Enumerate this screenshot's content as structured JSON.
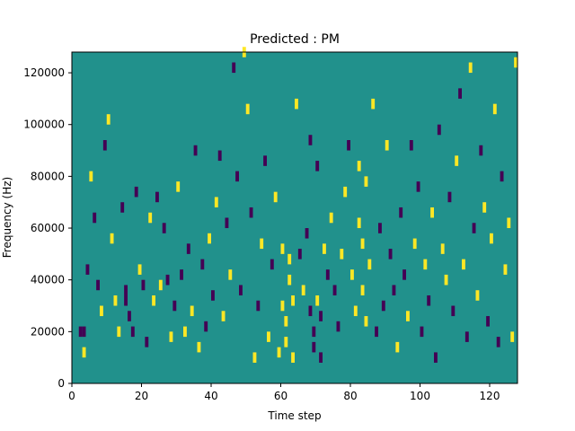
{
  "chart_data": {
    "type": "heatmap",
    "title": "Predicted : PM",
    "xlabel": "Time step",
    "ylabel": "Frequency (Hz)",
    "xlim": [
      0,
      128
    ],
    "ylim": [
      0,
      128000
    ],
    "x_ticks": [
      0,
      20,
      40,
      60,
      80,
      100,
      120
    ],
    "x_tick_labels": [
      "0",
      "20",
      "40",
      "60",
      "80",
      "100",
      "120"
    ],
    "y_ticks": [
      0,
      20000,
      40000,
      60000,
      80000,
      100000,
      120000
    ],
    "y_tick_labels": [
      "0",
      "20000",
      "40000",
      "60000",
      "80000",
      "100000",
      "120000"
    ],
    "grid": false,
    "colors": {
      "background": "#21918c",
      "high": "#fde725",
      "low": "#440154"
    },
    "cells": [
      {
        "x": 2,
        "f": 18000,
        "v": -1
      },
      {
        "x": 3,
        "f": 18000,
        "v": -1
      },
      {
        "x": 3,
        "f": 10000,
        "v": 1
      },
      {
        "x": 4,
        "f": 42000,
        "v": -1
      },
      {
        "x": 5,
        "f": 78000,
        "v": 1
      },
      {
        "x": 6,
        "f": 62000,
        "v": -1
      },
      {
        "x": 7,
        "f": 36000,
        "v": -1
      },
      {
        "x": 8,
        "f": 26000,
        "v": 1
      },
      {
        "x": 9,
        "f": 90000,
        "v": -1
      },
      {
        "x": 10,
        "f": 100000,
        "v": 1
      },
      {
        "x": 11,
        "f": 54000,
        "v": 1
      },
      {
        "x": 12,
        "f": 30000,
        "v": 1
      },
      {
        "x": 13,
        "f": 18000,
        "v": 1
      },
      {
        "x": 14,
        "f": 66000,
        "v": -1
      },
      {
        "x": 15,
        "f": 30000,
        "v": -1
      },
      {
        "x": 15,
        "f": 34000,
        "v": -1
      },
      {
        "x": 16,
        "f": 24000,
        "v": -1
      },
      {
        "x": 17,
        "f": 18000,
        "v": -1
      },
      {
        "x": 18,
        "f": 72000,
        "v": -1
      },
      {
        "x": 19,
        "f": 42000,
        "v": 1
      },
      {
        "x": 20,
        "f": 36000,
        "v": -1
      },
      {
        "x": 21,
        "f": 14000,
        "v": -1
      },
      {
        "x": 22,
        "f": 62000,
        "v": 1
      },
      {
        "x": 23,
        "f": 30000,
        "v": 1
      },
      {
        "x": 24,
        "f": 70000,
        "v": -1
      },
      {
        "x": 25,
        "f": 36000,
        "v": 1
      },
      {
        "x": 26,
        "f": 58000,
        "v": -1
      },
      {
        "x": 27,
        "f": 38000,
        "v": -1
      },
      {
        "x": 28,
        "f": 16000,
        "v": 1
      },
      {
        "x": 29,
        "f": 28000,
        "v": -1
      },
      {
        "x": 30,
        "f": 74000,
        "v": 1
      },
      {
        "x": 31,
        "f": 40000,
        "v": -1
      },
      {
        "x": 32,
        "f": 18000,
        "v": 1
      },
      {
        "x": 33,
        "f": 50000,
        "v": -1
      },
      {
        "x": 34,
        "f": 26000,
        "v": 1
      },
      {
        "x": 35,
        "f": 88000,
        "v": -1
      },
      {
        "x": 36,
        "f": 12000,
        "v": 1
      },
      {
        "x": 37,
        "f": 44000,
        "v": -1
      },
      {
        "x": 38,
        "f": 20000,
        "v": -1
      },
      {
        "x": 39,
        "f": 54000,
        "v": 1
      },
      {
        "x": 40,
        "f": 32000,
        "v": -1
      },
      {
        "x": 41,
        "f": 68000,
        "v": 1
      },
      {
        "x": 42,
        "f": 86000,
        "v": -1
      },
      {
        "x": 43,
        "f": 24000,
        "v": 1
      },
      {
        "x": 44,
        "f": 60000,
        "v": -1
      },
      {
        "x": 45,
        "f": 40000,
        "v": 1
      },
      {
        "x": 46,
        "f": 120000,
        "v": -1
      },
      {
        "x": 47,
        "f": 78000,
        "v": -1
      },
      {
        "x": 48,
        "f": 34000,
        "v": -1
      },
      {
        "x": 49,
        "f": 126000,
        "v": 1
      },
      {
        "x": 50,
        "f": 104000,
        "v": 1
      },
      {
        "x": 51,
        "f": 64000,
        "v": -1
      },
      {
        "x": 52,
        "f": 8000,
        "v": 1
      },
      {
        "x": 53,
        "f": 28000,
        "v": -1
      },
      {
        "x": 54,
        "f": 52000,
        "v": 1
      },
      {
        "x": 55,
        "f": 84000,
        "v": -1
      },
      {
        "x": 56,
        "f": 16000,
        "v": 1
      },
      {
        "x": 57,
        "f": 44000,
        "v": -1
      },
      {
        "x": 58,
        "f": 70000,
        "v": 1
      },
      {
        "x": 59,
        "f": 10000,
        "v": 1
      },
      {
        "x": 60,
        "f": 50000,
        "v": 1
      },
      {
        "x": 60,
        "f": 28000,
        "v": 1
      },
      {
        "x": 61,
        "f": 22000,
        "v": 1
      },
      {
        "x": 61,
        "f": 14000,
        "v": 1
      },
      {
        "x": 62,
        "f": 46000,
        "v": 1
      },
      {
        "x": 62,
        "f": 38000,
        "v": 1
      },
      {
        "x": 63,
        "f": 30000,
        "v": 1
      },
      {
        "x": 63,
        "f": 8000,
        "v": 1
      },
      {
        "x": 64,
        "f": 106000,
        "v": 1
      },
      {
        "x": 65,
        "f": 48000,
        "v": -1
      },
      {
        "x": 66,
        "f": 34000,
        "v": 1
      },
      {
        "x": 67,
        "f": 56000,
        "v": -1
      },
      {
        "x": 68,
        "f": 26000,
        "v": -1
      },
      {
        "x": 68,
        "f": 92000,
        "v": -1
      },
      {
        "x": 69,
        "f": 18000,
        "v": -1
      },
      {
        "x": 69,
        "f": 12000,
        "v": -1
      },
      {
        "x": 70,
        "f": 82000,
        "v": -1
      },
      {
        "x": 70,
        "f": 30000,
        "v": 1
      },
      {
        "x": 71,
        "f": 24000,
        "v": -1
      },
      {
        "x": 71,
        "f": 8000,
        "v": -1
      },
      {
        "x": 72,
        "f": 50000,
        "v": 1
      },
      {
        "x": 73,
        "f": 40000,
        "v": -1
      },
      {
        "x": 74,
        "f": 62000,
        "v": 1
      },
      {
        "x": 75,
        "f": 34000,
        "v": -1
      },
      {
        "x": 76,
        "f": 20000,
        "v": -1
      },
      {
        "x": 77,
        "f": 48000,
        "v": 1
      },
      {
        "x": 78,
        "f": 72000,
        "v": 1
      },
      {
        "x": 79,
        "f": 90000,
        "v": -1
      },
      {
        "x": 80,
        "f": 40000,
        "v": 1
      },
      {
        "x": 81,
        "f": 26000,
        "v": 1
      },
      {
        "x": 82,
        "f": 82000,
        "v": 1
      },
      {
        "x": 82,
        "f": 60000,
        "v": 1
      },
      {
        "x": 83,
        "f": 34000,
        "v": 1
      },
      {
        "x": 83,
        "f": 52000,
        "v": 1
      },
      {
        "x": 84,
        "f": 76000,
        "v": 1
      },
      {
        "x": 84,
        "f": 22000,
        "v": 1
      },
      {
        "x": 85,
        "f": 44000,
        "v": 1
      },
      {
        "x": 86,
        "f": 106000,
        "v": 1
      },
      {
        "x": 87,
        "f": 18000,
        "v": -1
      },
      {
        "x": 88,
        "f": 58000,
        "v": -1
      },
      {
        "x": 89,
        "f": 28000,
        "v": -1
      },
      {
        "x": 90,
        "f": 90000,
        "v": 1
      },
      {
        "x": 91,
        "f": 48000,
        "v": -1
      },
      {
        "x": 92,
        "f": 34000,
        "v": -1
      },
      {
        "x": 93,
        "f": 12000,
        "v": 1
      },
      {
        "x": 94,
        "f": 64000,
        "v": -1
      },
      {
        "x": 95,
        "f": 40000,
        "v": -1
      },
      {
        "x": 96,
        "f": 24000,
        "v": 1
      },
      {
        "x": 97,
        "f": 90000,
        "v": -1
      },
      {
        "x": 98,
        "f": 52000,
        "v": 1
      },
      {
        "x": 99,
        "f": 74000,
        "v": -1
      },
      {
        "x": 100,
        "f": 18000,
        "v": -1
      },
      {
        "x": 101,
        "f": 44000,
        "v": 1
      },
      {
        "x": 102,
        "f": 30000,
        "v": -1
      },
      {
        "x": 103,
        "f": 64000,
        "v": 1
      },
      {
        "x": 104,
        "f": 8000,
        "v": -1
      },
      {
        "x": 105,
        "f": 96000,
        "v": -1
      },
      {
        "x": 106,
        "f": 50000,
        "v": 1
      },
      {
        "x": 107,
        "f": 38000,
        "v": 1
      },
      {
        "x": 108,
        "f": 70000,
        "v": -1
      },
      {
        "x": 109,
        "f": 26000,
        "v": -1
      },
      {
        "x": 110,
        "f": 84000,
        "v": 1
      },
      {
        "x": 111,
        "f": 110000,
        "v": -1
      },
      {
        "x": 112,
        "f": 44000,
        "v": 1
      },
      {
        "x": 113,
        "f": 16000,
        "v": -1
      },
      {
        "x": 114,
        "f": 120000,
        "v": 1
      },
      {
        "x": 115,
        "f": 58000,
        "v": -1
      },
      {
        "x": 116,
        "f": 32000,
        "v": 1
      },
      {
        "x": 117,
        "f": 88000,
        "v": -1
      },
      {
        "x": 118,
        "f": 66000,
        "v": 1
      },
      {
        "x": 119,
        "f": 22000,
        "v": -1
      },
      {
        "x": 120,
        "f": 54000,
        "v": 1
      },
      {
        "x": 121,
        "f": 104000,
        "v": 1
      },
      {
        "x": 122,
        "f": 14000,
        "v": -1
      },
      {
        "x": 123,
        "f": 78000,
        "v": -1
      },
      {
        "x": 124,
        "f": 42000,
        "v": 1
      },
      {
        "x": 125,
        "f": 60000,
        "v": 1
      },
      {
        "x": 126,
        "f": 16000,
        "v": 1
      },
      {
        "x": 127,
        "f": 122000,
        "v": 1
      }
    ]
  }
}
